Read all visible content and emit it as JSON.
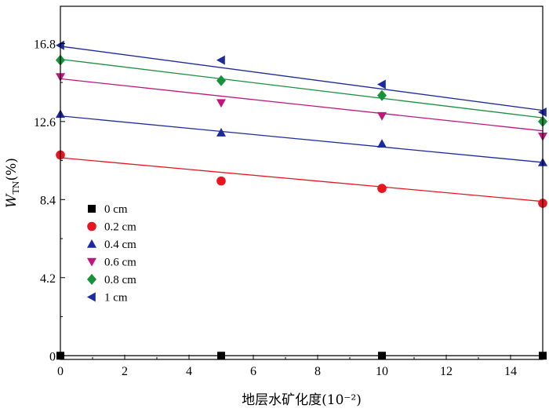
{
  "chart_data": {
    "type": "scatter",
    "title": "",
    "xlabel": "地层水矿化度(10⁻²)",
    "ylabel_main": "W",
    "ylabel_sub": "TN",
    "ylabel_suffix": "(%)",
    "xlim": [
      0,
      15
    ],
    "ylim": [
      -0.2,
      18.8
    ],
    "xticks": [
      0,
      2,
      4,
      6,
      8,
      10,
      12,
      14
    ],
    "yticks": [
      0,
      4.2,
      8.4,
      12.6,
      16.8
    ],
    "ytick_labels": [
      "0",
      "4.2",
      "8.4",
      "12.6",
      "16.8"
    ],
    "grid": false,
    "legend_position": "left-middle",
    "x": [
      0,
      5,
      10,
      15
    ],
    "series": [
      {
        "name": "0 cm",
        "marker": "square",
        "color": "#000000",
        "values": [
          0.0,
          0.0,
          0.0,
          0.0
        ],
        "fit": [
          0.0,
          0.0
        ]
      },
      {
        "name": "0.2 cm",
        "marker": "circle",
        "color": "#e8141e",
        "values": [
          10.8,
          9.4,
          9.0,
          8.2
        ],
        "fit": [
          10.65,
          8.3
        ]
      },
      {
        "name": "0.4 cm",
        "marker": "triangle-up",
        "color": "#1c2a9e",
        "values": [
          13.0,
          12.0,
          11.4,
          10.4
        ],
        "fit": [
          12.9,
          10.4
        ]
      },
      {
        "name": "0.6 cm",
        "marker": "triangle-down",
        "color": "#c0157f",
        "values": [
          15.0,
          13.6,
          12.9,
          11.8
        ],
        "fit": [
          14.9,
          12.1
        ]
      },
      {
        "name": "0.8 cm",
        "marker": "diamond",
        "color": "#18913c",
        "values": [
          15.9,
          14.8,
          14.0,
          12.6
        ],
        "fit": [
          15.95,
          12.8
        ]
      },
      {
        "name": "1 cm",
        "marker": "triangle-left",
        "color": "#1c2a9e",
        "values": [
          16.7,
          15.9,
          14.6,
          13.1
        ],
        "fit": [
          16.65,
          13.2
        ]
      }
    ]
  }
}
